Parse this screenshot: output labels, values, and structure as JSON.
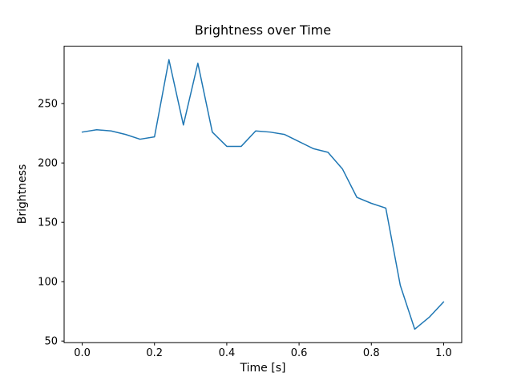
{
  "chart_data": {
    "type": "line",
    "title": "Brightness over Time",
    "xlabel": "Time [s]",
    "ylabel": "Brightness",
    "x": [
      0.0,
      0.04,
      0.08,
      0.12,
      0.16,
      0.2,
      0.24,
      0.28,
      0.32,
      0.36,
      0.4,
      0.44,
      0.48,
      0.52,
      0.56,
      0.6,
      0.64,
      0.68,
      0.72,
      0.76,
      0.8,
      0.84,
      0.88,
      0.92,
      0.96,
      1.0
    ],
    "y": [
      226,
      228,
      227,
      224,
      220,
      222,
      287,
      232,
      284,
      226,
      214,
      214,
      227,
      226,
      224,
      218,
      212,
      209,
      195,
      171,
      166,
      162,
      97,
      60,
      70,
      83
    ],
    "xlim": [
      -0.05,
      1.05
    ],
    "ylim": [
      48.65,
      298.35
    ],
    "xticks": [
      0.0,
      0.2,
      0.4,
      0.6,
      0.8,
      1.0
    ],
    "xtick_labels": [
      "0.0",
      "0.2",
      "0.4",
      "0.6",
      "0.8",
      "1.0"
    ],
    "yticks": [
      50,
      100,
      150,
      200,
      250
    ],
    "ytick_labels": [
      "50",
      "100",
      "150",
      "200",
      "250"
    ],
    "line_color": "#1f77b4",
    "spine_color": "#000000",
    "grid": false,
    "legend_position": "none"
  }
}
